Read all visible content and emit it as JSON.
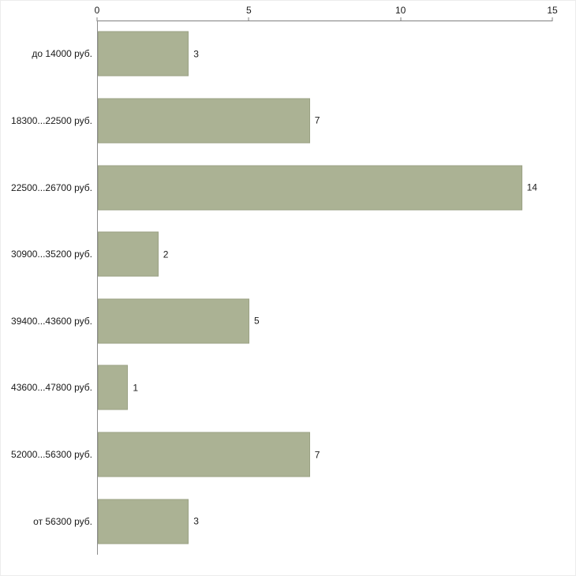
{
  "chart_data": {
    "type": "bar",
    "orientation": "horizontal",
    "title": "",
    "xlabel": "",
    "ylabel": "",
    "categories": [
      "до 14000 руб.",
      "18300...22500 руб.",
      "22500...26700 руб.",
      "30900...35200 руб.",
      "39400...43600 руб.",
      "43600...47800 руб.",
      "52000...56300 руб.",
      "от 56300 руб."
    ],
    "values": [
      3,
      7,
      14,
      2,
      5,
      1,
      7,
      3
    ],
    "xlim": [
      0,
      15
    ],
    "x_ticks": [
      0,
      5,
      10,
      15
    ],
    "x_axis_position": "top",
    "grid": false,
    "legend": false,
    "bar_color": "#abb294",
    "axis_color": "#7f7f7f",
    "background_color": "#ffffff"
  }
}
